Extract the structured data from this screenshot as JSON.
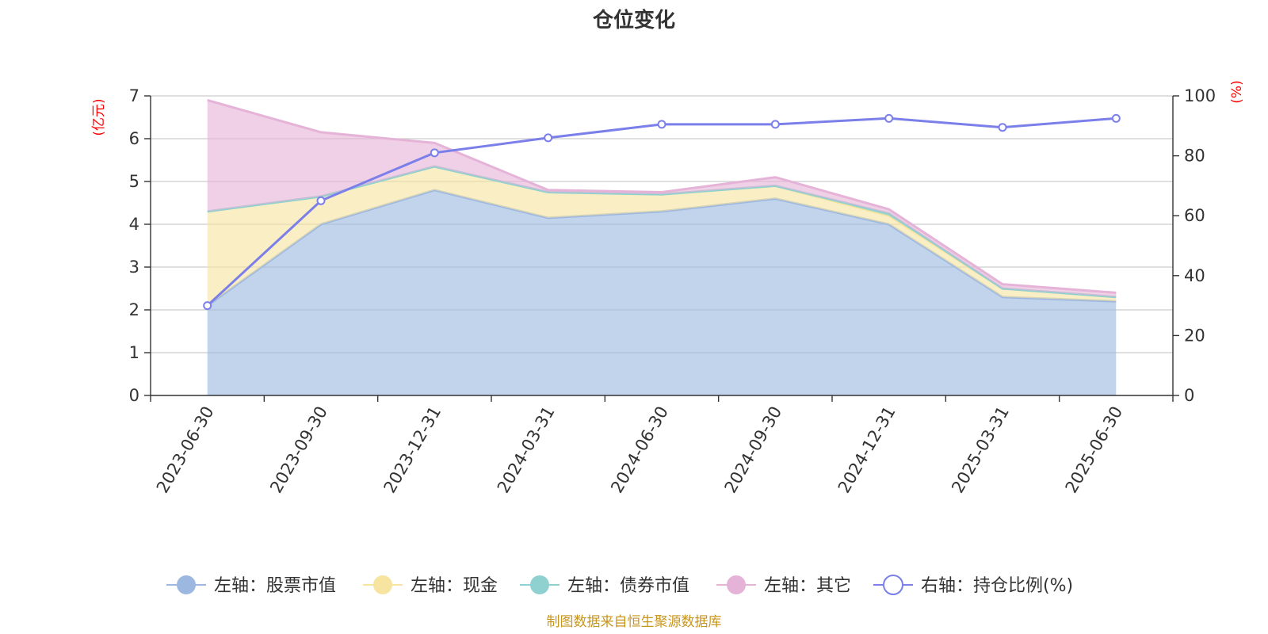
{
  "chart_data": {
    "type": "area",
    "title": "仓位变化",
    "source": "制图数据来自恒生聚源数据库",
    "categories": [
      "2023-06-30",
      "2023-09-30",
      "2023-12-31",
      "2024-03-31",
      "2024-06-30",
      "2024-09-30",
      "2024-12-31",
      "2025-03-31",
      "2025-06-30"
    ],
    "y_left": {
      "unit": "(亿元)",
      "ylim": [
        0,
        7
      ],
      "ticks": [
        "0",
        "1",
        "2",
        "3",
        "4",
        "5",
        "6",
        "7"
      ]
    },
    "y_right": {
      "unit": "(%)",
      "ylim": [
        0,
        100
      ],
      "ticks": [
        "0",
        "20",
        "40",
        "60",
        "80",
        "100"
      ]
    },
    "stacked": true,
    "grid": true,
    "legend_position": "bottom",
    "series": [
      {
        "name": "左轴：股票市值",
        "axis": "left",
        "type": "area",
        "color": "#9db8e0",
        "values": [
          2.1,
          4.0,
          4.8,
          4.15,
          4.3,
          4.6,
          4.0,
          2.3,
          2.2
        ]
      },
      {
        "name": "左轴：现金",
        "axis": "left",
        "type": "area",
        "color": "#f7e4a0",
        "values": [
          2.2,
          0.65,
          0.55,
          0.6,
          0.4,
          0.3,
          0.2,
          0.2,
          0.1
        ]
      },
      {
        "name": "左轴：债券市值",
        "axis": "left",
        "type": "area",
        "color": "#8fd1d0",
        "values": [
          0,
          0,
          0,
          0,
          0,
          0,
          0.05,
          0,
          0
        ]
      },
      {
        "name": "左轴：其它",
        "axis": "left",
        "type": "area",
        "color": "#e6b3d8",
        "values": [
          2.6,
          1.5,
          0.55,
          0.05,
          0.05,
          0.2,
          0.1,
          0.1,
          0.1
        ]
      },
      {
        "name": "右轴：持仓比例(%)",
        "axis": "right",
        "type": "line",
        "color": "#7b7fe9",
        "values": [
          30,
          65,
          81,
          86,
          90.5,
          90.5,
          92.5,
          89.5,
          92.5
        ]
      }
    ]
  }
}
